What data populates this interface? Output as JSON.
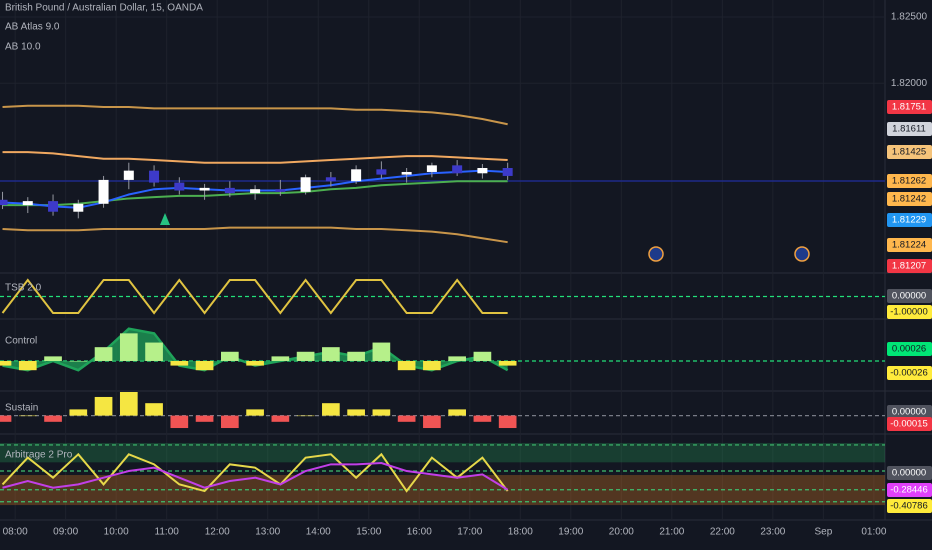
{
  "chart_data": [
    {
      "type": "candlestick",
      "title": "British Pound / Australian Dollar, 15, OANDA",
      "subtitles": [
        "AB Atlas 9.0",
        "AB 10.0"
      ],
      "x": [
        7.75,
        8.25,
        8.75,
        9.25,
        9.75,
        10.25,
        10.75,
        11.25,
        11.75,
        12.25,
        12.75,
        13.25,
        13.75,
        14.25,
        14.75,
        15.25,
        15.75,
        16.25,
        16.75,
        17.25,
        17.75
      ],
      "open": [
        1.8112,
        1.8108,
        1.8111,
        1.8103,
        1.8109,
        1.8127,
        1.8134,
        1.8125,
        1.8119,
        1.8121,
        1.8117,
        1.812,
        1.8118,
        1.8129,
        1.8126,
        1.8135,
        1.8131,
        1.8133,
        1.8138,
        1.8132,
        1.8136
      ],
      "high": [
        1.8118,
        1.8114,
        1.8116,
        1.8112,
        1.813,
        1.814,
        1.8138,
        1.8129,
        1.8124,
        1.8126,
        1.8123,
        1.8127,
        1.8131,
        1.8133,
        1.8138,
        1.8141,
        1.8136,
        1.814,
        1.8142,
        1.8139,
        1.814
      ],
      "low": [
        1.8105,
        1.8102,
        1.81,
        1.8098,
        1.8106,
        1.812,
        1.8122,
        1.8116,
        1.8112,
        1.8114,
        1.8112,
        1.8115,
        1.8116,
        1.8122,
        1.8124,
        1.8128,
        1.8125,
        1.8129,
        1.813,
        1.8128,
        1.8127
      ],
      "close": [
        1.8108,
        1.8111,
        1.8103,
        1.8109,
        1.8127,
        1.8134,
        1.8125,
        1.8119,
        1.8121,
        1.8117,
        1.812,
        1.8118,
        1.8129,
        1.8126,
        1.8135,
        1.8131,
        1.8133,
        1.8138,
        1.8132,
        1.8136,
        1.813
      ],
      "up_color": "#ffffff",
      "down_color": "#3d3ac9",
      "series": [
        {
          "color": "#c8954a",
          "values": [
            1.8182,
            1.8183,
            1.8183,
            1.8183,
            1.8182,
            1.8182,
            1.8181,
            1.8181,
            1.8181,
            1.8181,
            1.8181,
            1.8181,
            1.8181,
            1.8181,
            1.818,
            1.818,
            1.8179,
            1.8178,
            1.8176,
            1.8173,
            1.8169
          ]
        },
        {
          "color": "#c8954a",
          "values": [
            1.809,
            1.8089,
            1.8089,
            1.8089,
            1.809,
            1.809,
            1.809,
            1.809,
            1.809,
            1.8091,
            1.8091,
            1.8091,
            1.8091,
            1.8091,
            1.809,
            1.809,
            1.8089,
            1.8088,
            1.8086,
            1.8083,
            1.808
          ]
        },
        {
          "color": "#f0a860",
          "values": [
            1.8148,
            1.8148,
            1.8147,
            1.8145,
            1.8143,
            1.8143,
            1.8142,
            1.8141,
            1.814,
            1.814,
            1.814,
            1.814,
            1.8141,
            1.8142,
            1.8143,
            1.8144,
            1.8145,
            1.8145,
            1.8144,
            1.8143,
            1.8142
          ]
        },
        {
          "color": "#4caf50",
          "values": [
            1.8108,
            1.8108,
            1.8108,
            1.8109,
            1.8111,
            1.8113,
            1.8114,
            1.8115,
            1.8115,
            1.8116,
            1.8117,
            1.8117,
            1.8118,
            1.812,
            1.8121,
            1.8123,
            1.8124,
            1.8125,
            1.8126,
            1.8126,
            1.8126
          ]
        },
        {
          "color": "#2962ff",
          "values": [
            1.811,
            1.8109,
            1.8107,
            1.8106,
            1.811,
            1.8116,
            1.812,
            1.8121,
            1.812,
            1.8119,
            1.8119,
            1.8119,
            1.8121,
            1.8123,
            1.8126,
            1.8128,
            1.813,
            1.8132,
            1.8133,
            1.8134,
            1.8133
          ]
        }
      ],
      "price_line": 1.81262,
      "price_line_color": "#1e2a8a",
      "ylim": [
        1.80575,
        1.82628
      ],
      "yticks": [
        {
          "value": 1.825,
          "label": "1.82500"
        },
        {
          "value": 1.82,
          "label": "1.82000"
        }
      ],
      "xlim": [
        7.7,
        25.22
      ],
      "xticks": [
        {
          "value": 8,
          "label": "08:00"
        },
        {
          "value": 9,
          "label": "09:00"
        },
        {
          "value": 10,
          "label": "10:00"
        },
        {
          "value": 11,
          "label": "11:00"
        },
        {
          "value": 12,
          "label": "12:00"
        },
        {
          "value": 13,
          "label": "13:00"
        },
        {
          "value": 14,
          "label": "14:00"
        },
        {
          "value": 15,
          "label": "15:00"
        },
        {
          "value": 16,
          "label": "16:00"
        },
        {
          "value": 17,
          "label": "17:00"
        },
        {
          "value": 18,
          "label": "18:00"
        },
        {
          "value": 19,
          "label": "19:00"
        },
        {
          "value": 20,
          "label": "20:00"
        },
        {
          "value": 21,
          "label": "21:00"
        },
        {
          "value": 22,
          "label": "22:00"
        },
        {
          "value": 23,
          "label": "23:00"
        },
        {
          "value": 24,
          "label": "Sep"
        },
        {
          "value": 25,
          "label": "01:00"
        }
      ],
      "grid": true,
      "tags": [
        {
          "label": "1.81751",
          "color": "#f23645",
          "text_color": "#ffffff"
        },
        {
          "label": "1.81611",
          "color": "#d1d4dc",
          "text_color": "#131722"
        },
        {
          "label": "1.81425",
          "color": "#f5c37a",
          "text_color": "#131722"
        },
        {
          "label": "1.81262",
          "color": "#ffb74d",
          "text_color": "#131722"
        },
        {
          "label": "1.81242",
          "color": "#ffb74d",
          "text_color": "#131722"
        },
        {
          "label": "1.81229",
          "color": "#2196f3",
          "text_color": "#ffffff"
        },
        {
          "label": "1.81224",
          "color": "#ffb74d",
          "text_color": "#131722"
        },
        {
          "label": "1.81207",
          "color": "#f23645",
          "text_color": "#ffffff"
        }
      ]
    },
    {
      "type": "line",
      "title": "TSB 2.0",
      "series": [
        {
          "color": "#e0c341",
          "values": [
            -1,
            1,
            -1,
            -1,
            1,
            1,
            -1,
            1,
            -1,
            1,
            1,
            -1,
            1,
            -1,
            1,
            1,
            -1,
            -1,
            1,
            -1,
            -1
          ]
        }
      ],
      "ylim": [
        -1.3,
        1.3
      ],
      "hlines": [
        0
      ],
      "hline_color": "#22e07a",
      "tags": [
        {
          "label": "0.00000",
          "color": "#50535e",
          "text_color": "#ffffff"
        },
        {
          "label": "-1.00000",
          "color": "#ffeb3b",
          "text_color": "#131722"
        }
      ]
    },
    {
      "type": "area",
      "title": "Control",
      "series": [
        {
          "color": "#1fa35a",
          "values": [
            -0.0001,
            -0.0002,
            0.0,
            -0.0002,
            0.0002,
            0.0007,
            0.0006,
            -0.0001,
            -0.0002,
            0.0001,
            -0.0001,
            0.0,
            0.0001,
            0.0002,
            0.0001,
            0.0003,
            -0.0001,
            -0.0002,
            0.0,
            0.0001,
            -0.0002
          ]
        }
      ],
      "bars": [
        -0.0001,
        -0.0002,
        0.0001,
        0.0,
        0.0003,
        0.0006,
        0.0004,
        -0.0001,
        -0.0002,
        0.0002,
        -0.0001,
        0.0001,
        0.0002,
        0.0003,
        0.0002,
        0.0004,
        -0.0002,
        -0.0002,
        0.0001,
        0.0002,
        -0.0001
      ],
      "pos_color": "#b6f08a",
      "neg_color": "#f5e642",
      "ylim": [
        -0.00063,
        0.00089
      ],
      "hlines": [
        0
      ],
      "hline_color": "#22e07a",
      "tags": [
        {
          "label": "0.00026",
          "color": "#00e676",
          "text_color": "#131722"
        },
        {
          "label": "-0.00026",
          "color": "#ffeb3b",
          "text_color": "#131722"
        }
      ]
    },
    {
      "type": "bar",
      "title": "Sustain",
      "values": [
        -0.0001,
        0.0,
        -0.0001,
        0.0001,
        0.0003,
        0.0004,
        0.0002,
        -0.0002,
        -0.0001,
        -0.0002,
        0.0001,
        -0.0001,
        0.0,
        0.0002,
        0.0001,
        0.0001,
        -0.0001,
        -0.0002,
        0.0001,
        -0.0001,
        -0.0002
      ],
      "pos_color": "#f5e642",
      "neg_color": "#f05454",
      "ylim": [
        -0.00028,
        0.00038
      ],
      "hlines": [
        0
      ],
      "hline_color": "#787b86",
      "tags": [
        {
          "label": "0.00000",
          "color": "#50535e",
          "text_color": "#ffffff"
        },
        {
          "label": "-0.00015",
          "color": "#f23645",
          "text_color": "#ffffff"
        }
      ]
    },
    {
      "type": "line",
      "title": "Arbitrage 2 Pro",
      "series": [
        {
          "color": "#e6d84a",
          "values": [
            -0.2,
            0.2,
            -0.1,
            0.25,
            -0.2,
            0.25,
            0.1,
            -0.2,
            -0.3,
            0.1,
            0.05,
            -0.2,
            0.2,
            0.25,
            -0.1,
            0.25,
            -0.3,
            0.2,
            -0.1,
            0.2,
            -0.3
          ]
        },
        {
          "color": "#c23fe8",
          "values": [
            -0.25,
            -0.15,
            -0.25,
            -0.2,
            -0.1,
            0.0,
            0.05,
            -0.1,
            -0.25,
            -0.15,
            -0.1,
            -0.2,
            0.0,
            0.1,
            0.1,
            0.12,
            0.0,
            -0.05,
            -0.1,
            -0.05,
            -0.28
          ]
        }
      ],
      "bands": [
        {
          "from": 0.13,
          "to": 0.42,
          "color": "rgba(38,166,91,0.28)"
        },
        {
          "from": -0.51,
          "to": -0.06,
          "color": "rgba(230,126,34,0.30)"
        }
      ],
      "ylim": [
        -0.733,
        0.539
      ],
      "hlines": [
        0.39,
        0,
        -0.28,
        -0.46
      ],
      "hline_color": "#3fbf6f",
      "tags": [
        {
          "label": "0.00000",
          "color": "#50535e",
          "text_color": "#ffffff"
        },
        {
          "label": "-0.28446",
          "color": "#e040fb",
          "text_color": "#ffffff"
        },
        {
          "label": "-0.40786",
          "color": "#ffeb3b",
          "text_color": "#131722"
        }
      ]
    }
  ]
}
